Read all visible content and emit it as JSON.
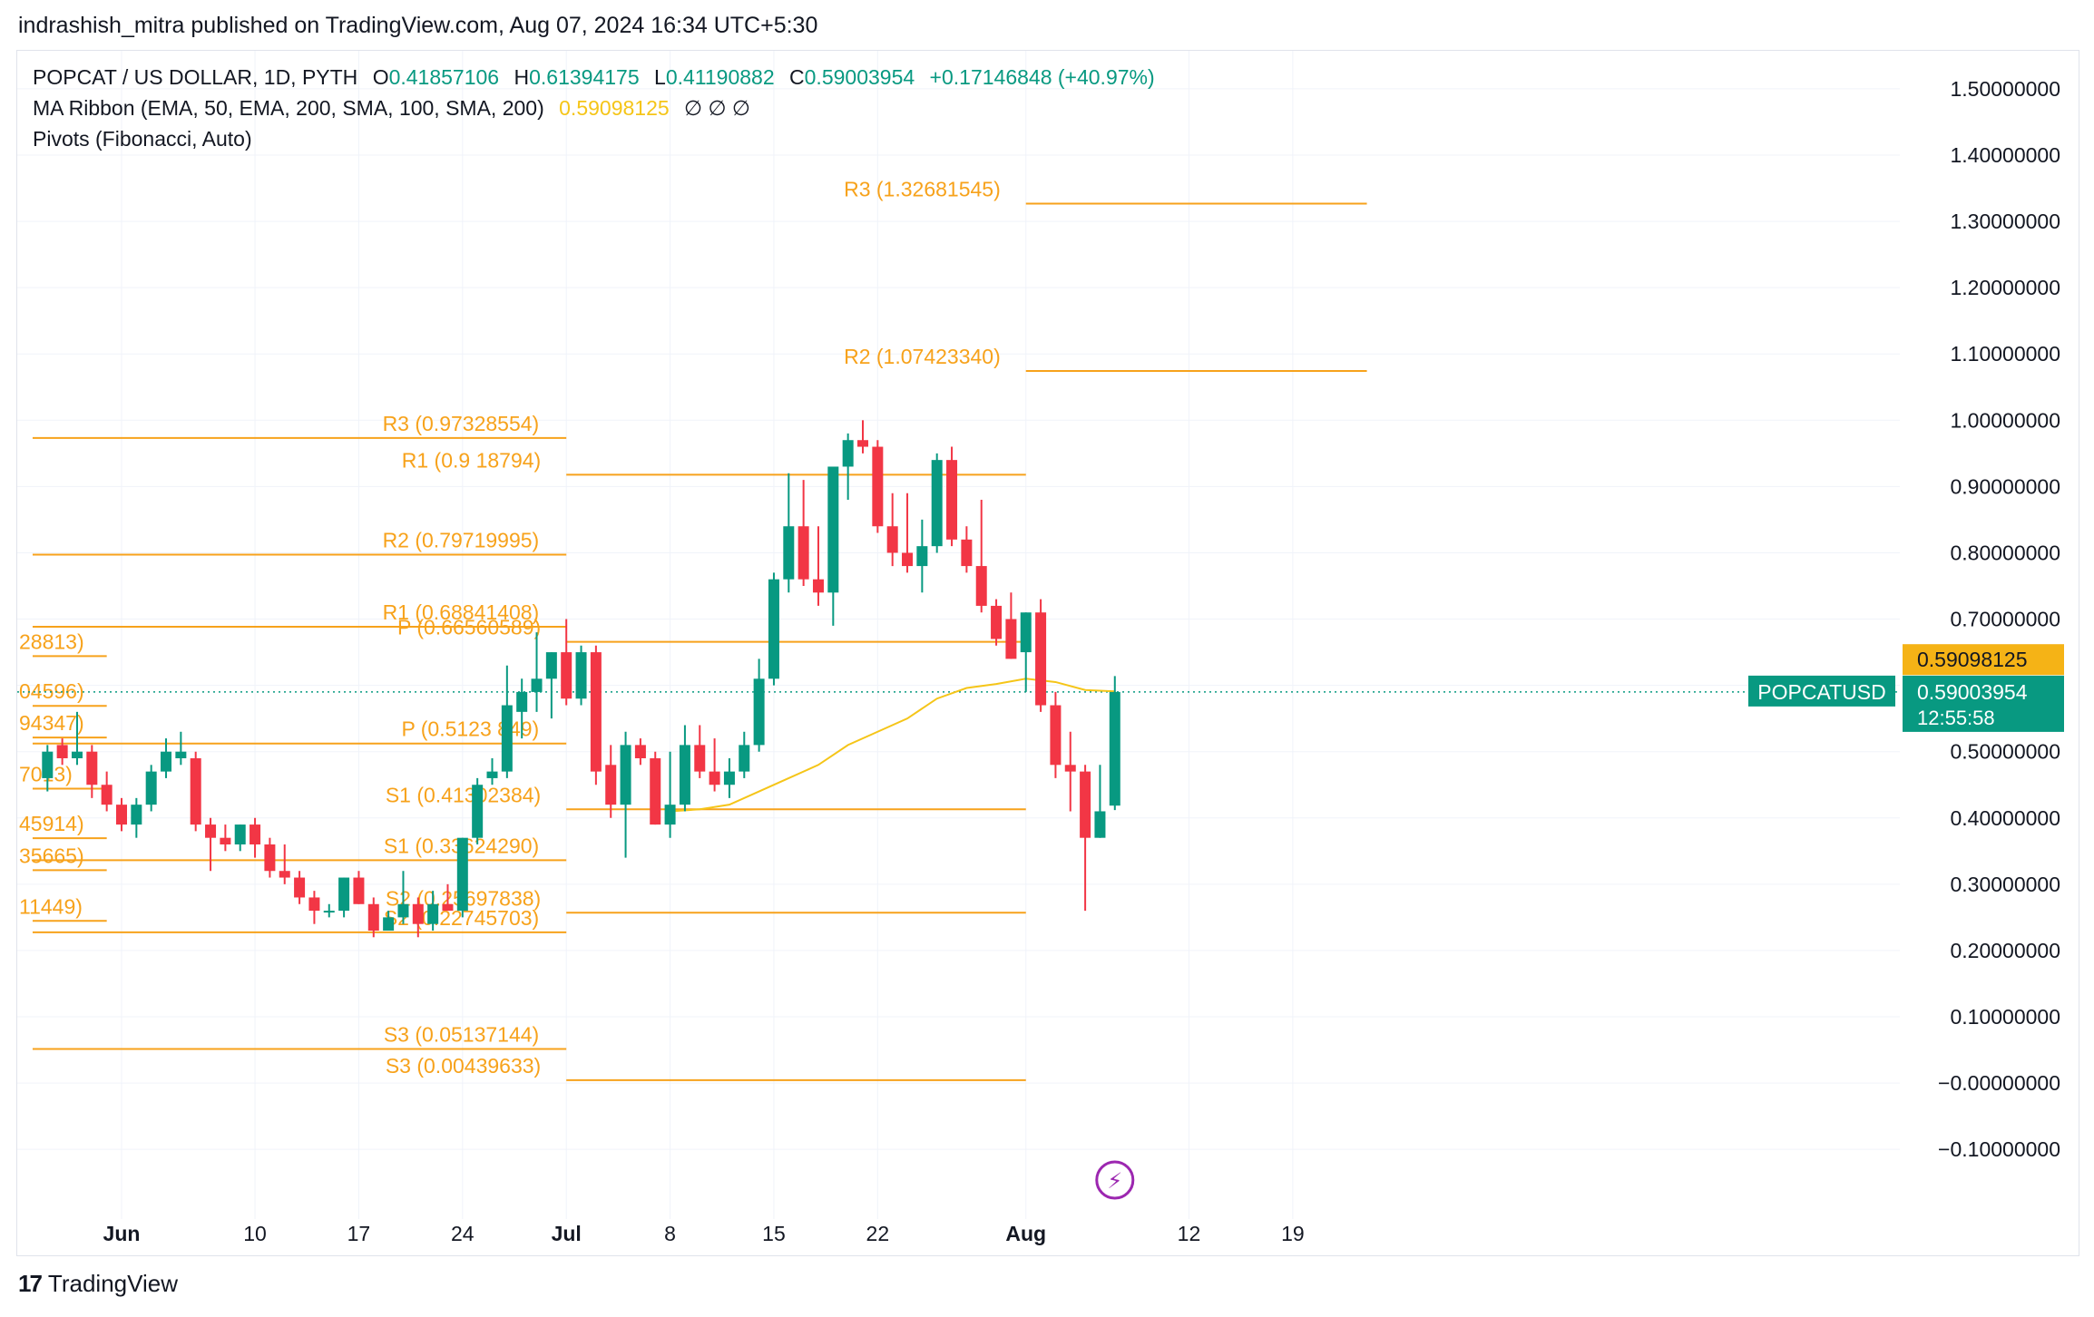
{
  "header": {
    "publisher_line": "indrashish_mitra published on TradingView.com, Aug 07, 2024 16:34 UTC+5:30"
  },
  "legend": {
    "symbol": "POPCAT / US DOLLAR, 1D, PYTH",
    "o_label": "O",
    "o_value": "0.41857106",
    "h_label": "H",
    "h_value": "0.61394175",
    "l_label": "L",
    "l_value": "0.41190882",
    "c_label": "C",
    "c_value": "0.59003954",
    "change": "+0.17146848 (+40.97%)",
    "ma_ribbon": "MA Ribbon (EMA, 50, EMA, 200, SMA, 100, SMA, 200)",
    "ma_value": "0.59098125",
    "ma_na": "∅ ∅ ∅",
    "pivots": "Pivots (Fibonacci, Auto)"
  },
  "footer": {
    "brand": "TradingView",
    "logo_glyph": "17"
  },
  "colors": {
    "up": "#089981",
    "down": "#f23645",
    "pivot": "#f7a21b",
    "ma": "#f5c518",
    "grid": "#f0f3fa",
    "text": "#131722",
    "price_tag": "#089981"
  },
  "chart_data": {
    "type": "candlestick",
    "y_range": [
      -0.16,
      1.53
    ],
    "y_ticks": [
      "1.50000000",
      "1.40000000",
      "1.30000000",
      "1.20000000",
      "1.10000000",
      "1.00000000",
      "0.90000000",
      "0.80000000",
      "0.70000000",
      "0.60000000",
      "0.50000000",
      "0.40000000",
      "0.30000000",
      "0.20000000",
      "0.10000000",
      "−0.00000000",
      "−0.10000000"
    ],
    "y_tick_values": [
      1.5,
      1.4,
      1.3,
      1.2,
      1.1,
      1.0,
      0.9,
      0.8,
      0.7,
      0.6,
      0.5,
      0.4,
      0.3,
      0.2,
      0.1,
      0.0,
      -0.1
    ],
    "x_ticks": [
      {
        "label": "Jun",
        "day": 0,
        "bold": true
      },
      {
        "label": "10",
        "day": 9,
        "bold": false
      },
      {
        "label": "17",
        "day": 16,
        "bold": false
      },
      {
        "label": "24",
        "day": 23,
        "bold": false
      },
      {
        "label": "Jul",
        "day": 30,
        "bold": true
      },
      {
        "label": "8",
        "day": 37,
        "bold": false
      },
      {
        "label": "15",
        "day": 44,
        "bold": false
      },
      {
        "label": "22",
        "day": 51,
        "bold": false
      },
      {
        "label": "Aug",
        "day": 61,
        "bold": true
      },
      {
        "label": "12",
        "day": 72,
        "bold": false
      },
      {
        "label": "19",
        "day": 79,
        "bold": false
      }
    ],
    "candles": [
      {
        "d": -5,
        "o": 0.46,
        "h": 0.51,
        "l": 0.44,
        "c": 0.5
      },
      {
        "d": -4,
        "o": 0.51,
        "h": 0.52,
        "l": 0.48,
        "c": 0.49
      },
      {
        "d": -3,
        "o": 0.49,
        "h": 0.56,
        "l": 0.48,
        "c": 0.5
      },
      {
        "d": -2,
        "o": 0.5,
        "h": 0.51,
        "l": 0.43,
        "c": 0.45
      },
      {
        "d": -1,
        "o": 0.45,
        "h": 0.47,
        "l": 0.41,
        "c": 0.42
      },
      {
        "d": 0,
        "o": 0.42,
        "h": 0.43,
        "l": 0.38,
        "c": 0.39
      },
      {
        "d": 1,
        "o": 0.39,
        "h": 0.43,
        "l": 0.37,
        "c": 0.42
      },
      {
        "d": 2,
        "o": 0.42,
        "h": 0.48,
        "l": 0.41,
        "c": 0.47
      },
      {
        "d": 3,
        "o": 0.47,
        "h": 0.52,
        "l": 0.46,
        "c": 0.5
      },
      {
        "d": 4,
        "o": 0.49,
        "h": 0.53,
        "l": 0.48,
        "c": 0.5
      },
      {
        "d": 5,
        "o": 0.49,
        "h": 0.5,
        "l": 0.38,
        "c": 0.39
      },
      {
        "d": 6,
        "o": 0.39,
        "h": 0.4,
        "l": 0.32,
        "c": 0.37
      },
      {
        "d": 7,
        "o": 0.37,
        "h": 0.39,
        "l": 0.35,
        "c": 0.36
      },
      {
        "d": 8,
        "o": 0.36,
        "h": 0.39,
        "l": 0.35,
        "c": 0.39
      },
      {
        "d": 9,
        "o": 0.39,
        "h": 0.4,
        "l": 0.34,
        "c": 0.36
      },
      {
        "d": 10,
        "o": 0.36,
        "h": 0.37,
        "l": 0.31,
        "c": 0.32
      },
      {
        "d": 11,
        "o": 0.32,
        "h": 0.36,
        "l": 0.3,
        "c": 0.31
      },
      {
        "d": 12,
        "o": 0.31,
        "h": 0.32,
        "l": 0.27,
        "c": 0.28
      },
      {
        "d": 13,
        "o": 0.28,
        "h": 0.29,
        "l": 0.24,
        "c": 0.26
      },
      {
        "d": 14,
        "o": 0.26,
        "h": 0.27,
        "l": 0.25,
        "c": 0.26
      },
      {
        "d": 15,
        "o": 0.26,
        "h": 0.31,
        "l": 0.25,
        "c": 0.31
      },
      {
        "d": 16,
        "o": 0.31,
        "h": 0.32,
        "l": 0.27,
        "c": 0.27
      },
      {
        "d": 17,
        "o": 0.27,
        "h": 0.28,
        "l": 0.22,
        "c": 0.23
      },
      {
        "d": 18,
        "o": 0.23,
        "h": 0.26,
        "l": 0.23,
        "c": 0.25
      },
      {
        "d": 19,
        "o": 0.25,
        "h": 0.32,
        "l": 0.24,
        "c": 0.27
      },
      {
        "d": 20,
        "o": 0.27,
        "h": 0.28,
        "l": 0.22,
        "c": 0.24
      },
      {
        "d": 21,
        "o": 0.24,
        "h": 0.29,
        "l": 0.23,
        "c": 0.27
      },
      {
        "d": 22,
        "o": 0.27,
        "h": 0.3,
        "l": 0.26,
        "c": 0.26
      },
      {
        "d": 23,
        "o": 0.26,
        "h": 0.37,
        "l": 0.25,
        "c": 0.37
      },
      {
        "d": 24,
        "o": 0.37,
        "h": 0.46,
        "l": 0.36,
        "c": 0.45
      },
      {
        "d": 25,
        "o": 0.46,
        "h": 0.49,
        "l": 0.45,
        "c": 0.47
      },
      {
        "d": 26,
        "o": 0.47,
        "h": 0.63,
        "l": 0.46,
        "c": 0.57
      },
      {
        "d": 27,
        "o": 0.56,
        "h": 0.61,
        "l": 0.52,
        "c": 0.59
      },
      {
        "d": 28,
        "o": 0.59,
        "h": 0.68,
        "l": 0.56,
        "c": 0.61
      },
      {
        "d": 29,
        "o": 0.61,
        "h": 0.65,
        "l": 0.55,
        "c": 0.65
      },
      {
        "d": 30,
        "o": 0.65,
        "h": 0.7,
        "l": 0.57,
        "c": 0.58
      },
      {
        "d": 31,
        "o": 0.58,
        "h": 0.66,
        "l": 0.57,
        "c": 0.65
      },
      {
        "d": 32,
        "o": 0.65,
        "h": 0.66,
        "l": 0.45,
        "c": 0.47
      },
      {
        "d": 33,
        "o": 0.48,
        "h": 0.51,
        "l": 0.4,
        "c": 0.42
      },
      {
        "d": 34,
        "o": 0.42,
        "h": 0.53,
        "l": 0.34,
        "c": 0.51
      },
      {
        "d": 35,
        "o": 0.51,
        "h": 0.52,
        "l": 0.48,
        "c": 0.49
      },
      {
        "d": 36,
        "o": 0.49,
        "h": 0.5,
        "l": 0.39,
        "c": 0.39
      },
      {
        "d": 37,
        "o": 0.39,
        "h": 0.5,
        "l": 0.37,
        "c": 0.42
      },
      {
        "d": 38,
        "o": 0.42,
        "h": 0.54,
        "l": 0.41,
        "c": 0.51
      },
      {
        "d": 39,
        "o": 0.51,
        "h": 0.54,
        "l": 0.46,
        "c": 0.47
      },
      {
        "d": 40,
        "o": 0.47,
        "h": 0.52,
        "l": 0.44,
        "c": 0.45
      },
      {
        "d": 41,
        "o": 0.45,
        "h": 0.49,
        "l": 0.43,
        "c": 0.47
      },
      {
        "d": 42,
        "o": 0.47,
        "h": 0.53,
        "l": 0.46,
        "c": 0.51
      },
      {
        "d": 43,
        "o": 0.51,
        "h": 0.64,
        "l": 0.5,
        "c": 0.61
      },
      {
        "d": 44,
        "o": 0.61,
        "h": 0.77,
        "l": 0.6,
        "c": 0.76
      },
      {
        "d": 45,
        "o": 0.76,
        "h": 0.92,
        "l": 0.74,
        "c": 0.84
      },
      {
        "d": 46,
        "o": 0.84,
        "h": 0.91,
        "l": 0.75,
        "c": 0.76
      },
      {
        "d": 47,
        "o": 0.76,
        "h": 0.84,
        "l": 0.72,
        "c": 0.74
      },
      {
        "d": 48,
        "o": 0.74,
        "h": 0.92,
        "l": 0.69,
        "c": 0.93
      },
      {
        "d": 49,
        "o": 0.93,
        "h": 0.98,
        "l": 0.88,
        "c": 0.97
      },
      {
        "d": 50,
        "o": 0.97,
        "h": 1.0,
        "l": 0.95,
        "c": 0.96
      },
      {
        "d": 51,
        "o": 0.96,
        "h": 0.97,
        "l": 0.83,
        "c": 0.84
      },
      {
        "d": 52,
        "o": 0.84,
        "h": 0.89,
        "l": 0.78,
        "c": 0.8
      },
      {
        "d": 53,
        "o": 0.8,
        "h": 0.89,
        "l": 0.77,
        "c": 0.78
      },
      {
        "d": 54,
        "o": 0.78,
        "h": 0.85,
        "l": 0.74,
        "c": 0.81
      },
      {
        "d": 55,
        "o": 0.81,
        "h": 0.95,
        "l": 0.8,
        "c": 0.94
      },
      {
        "d": 56,
        "o": 0.94,
        "h": 0.96,
        "l": 0.81,
        "c": 0.82
      },
      {
        "d": 57,
        "o": 0.82,
        "h": 0.84,
        "l": 0.77,
        "c": 0.78
      },
      {
        "d": 58,
        "o": 0.78,
        "h": 0.88,
        "l": 0.71,
        "c": 0.72
      },
      {
        "d": 59,
        "o": 0.72,
        "h": 0.73,
        "l": 0.66,
        "c": 0.67
      },
      {
        "d": 60,
        "o": 0.7,
        "h": 0.74,
        "l": 0.64,
        "c": 0.64
      },
      {
        "d": 61,
        "o": 0.65,
        "h": 0.71,
        "l": 0.59,
        "c": 0.71
      },
      {
        "d": 62,
        "o": 0.71,
        "h": 0.73,
        "l": 0.56,
        "c": 0.57
      },
      {
        "d": 63,
        "o": 0.57,
        "h": 0.59,
        "l": 0.46,
        "c": 0.48
      },
      {
        "d": 64,
        "o": 0.48,
        "h": 0.53,
        "l": 0.41,
        "c": 0.47
      },
      {
        "d": 65,
        "o": 0.47,
        "h": 0.48,
        "l": 0.26,
        "c": 0.37
      },
      {
        "d": 66,
        "o": 0.37,
        "h": 0.48,
        "l": 0.37,
        "c": 0.41
      },
      {
        "d": 67,
        "o": 0.41857106,
        "h": 0.61394175,
        "l": 0.41190882,
        "c": 0.59003954
      }
    ],
    "ma_line": [
      {
        "d": 37,
        "v": 0.41
      },
      {
        "d": 39,
        "v": 0.413
      },
      {
        "d": 41,
        "v": 0.42
      },
      {
        "d": 43,
        "v": 0.44
      },
      {
        "d": 45,
        "v": 0.46
      },
      {
        "d": 47,
        "v": 0.48
      },
      {
        "d": 49,
        "v": 0.51
      },
      {
        "d": 51,
        "v": 0.53
      },
      {
        "d": 53,
        "v": 0.55
      },
      {
        "d": 55,
        "v": 0.58
      },
      {
        "d": 57,
        "v": 0.596
      },
      {
        "d": 59,
        "v": 0.602
      },
      {
        "d": 61,
        "v": 0.61
      },
      {
        "d": 63,
        "v": 0.605
      },
      {
        "d": 65,
        "v": 0.593
      },
      {
        "d": 67,
        "v": 0.5909
      }
    ],
    "pivot_periods": [
      {
        "from": -6,
        "to": -1,
        "levels": [
          {
            "label": "28813)",
            "value": 0.6441
          },
          {
            "label": "04596)",
            "value": 0.5691
          },
          {
            "label": "94347)",
            "value": 0.5213
          },
          {
            "label": "7013)",
            "value": 0.4441
          },
          {
            "label": "45914)",
            "value": 0.3694
          },
          {
            "label": "35665)",
            "value": 0.3212
          },
          {
            "label": "11449)",
            "value": 0.2447
          }
        ]
      },
      {
        "from": -6,
        "to": 30,
        "levels": [
          {
            "label": "R3 (0.97328554)",
            "value": 0.97328554
          },
          {
            "label": "R2 (0.79719995)",
            "value": 0.79719995
          },
          {
            "label": "R1 (0.68841408)",
            "value": 0.68841408
          },
          {
            "label": "P (0.5123 849)",
            "value": 0.5123
          },
          {
            "label": "S1 (0.33624290)",
            "value": 0.3362429
          },
          {
            "label": "S2 (0.22745703)",
            "value": 0.22745703
          },
          {
            "label": "S3 (0.05137144)",
            "value": 0.05137144
          }
        ],
        "labels_from": 20
      },
      {
        "from": 30,
        "to": 61,
        "levels": [
          {
            "label": "R1 (0.9 18794)",
            "value": 0.9178794
          },
          {
            "label": "P (0.66560589)",
            "value": 0.66560589
          },
          {
            "label": "S1 (0.41302384)",
            "value": 0.41302384
          },
          {
            "label": "S2 (0.25697838)",
            "value": 0.25697838
          },
          {
            "label": "S3 (0.00439633)",
            "value": 0.00439633
          }
        ]
      },
      {
        "from": 61,
        "to": 84,
        "levels": [
          {
            "label": "R3 (1.32681545)",
            "value": 1.32681545
          },
          {
            "label": "R2 (1.07423340)",
            "value": 1.0742334
          }
        ]
      }
    ],
    "price_tags": {
      "ma_value": "0.59098125",
      "symbol": "POPCATUSD",
      "last_price": "0.59003954",
      "countdown": "12:55:58"
    }
  }
}
